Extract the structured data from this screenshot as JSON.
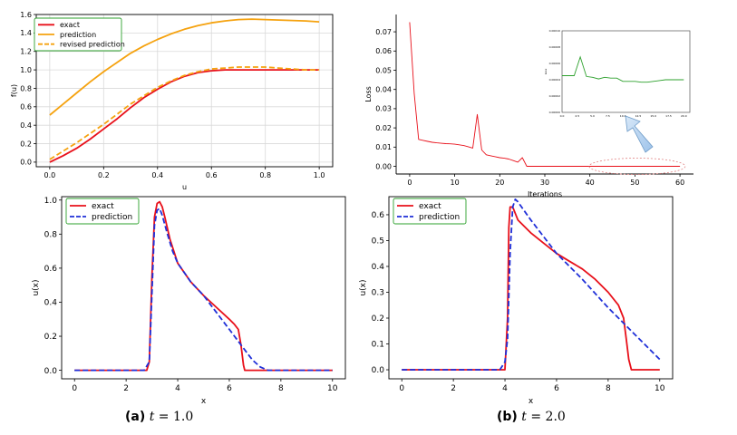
{
  "captions": {
    "a": {
      "label": "(a)",
      "var": "t",
      "eq": "= 1.0"
    },
    "b": {
      "label": "(b)",
      "var": "t",
      "eq": "= 2.0"
    }
  },
  "chart_data": [
    {
      "id": "flux",
      "type": "line",
      "title": "",
      "xlabel": "u",
      "ylabel": "f(u)",
      "xlim": [
        -0.05,
        1.05
      ],
      "ylim": [
        -0.05,
        1.6
      ],
      "xticks": [
        0.0,
        0.2,
        0.4,
        0.6,
        0.8,
        1.0
      ],
      "yticks": [
        0.0,
        0.2,
        0.4,
        0.6,
        0.8,
        1.0,
        1.2,
        1.4,
        1.6
      ],
      "xtick_labels": [
        "0.0",
        "0.2",
        "0.4",
        "0.6",
        "0.8",
        "1.0"
      ],
      "ytick_labels": [
        "0.0",
        "0.2",
        "0.4",
        "0.6",
        "0.8",
        "1.0",
        "1.2",
        "1.4",
        "1.6"
      ],
      "grid": true,
      "legend_position": "top-left",
      "series": [
        {
          "name": "exact",
          "color": "#e8101a",
          "dash": "solid",
          "x": [
            0,
            0.05,
            0.1,
            0.15,
            0.2,
            0.25,
            0.3,
            0.35,
            0.4,
            0.45,
            0.5,
            0.55,
            0.6,
            0.65,
            0.7,
            0.75,
            0.8,
            0.85,
            0.9,
            0.95,
            1.0
          ],
          "y": [
            0,
            0.07,
            0.15,
            0.25,
            0.36,
            0.47,
            0.59,
            0.7,
            0.79,
            0.87,
            0.93,
            0.97,
            0.99,
            1.0,
            1.0,
            1.0,
            1.0,
            1.0,
            1.0,
            1.0,
            1.0
          ]
        },
        {
          "name": "prediction",
          "color": "#f5a20f",
          "dash": "solid",
          "x": [
            0,
            0.05,
            0.1,
            0.15,
            0.2,
            0.25,
            0.3,
            0.35,
            0.4,
            0.45,
            0.5,
            0.55,
            0.6,
            0.65,
            0.7,
            0.75,
            0.8,
            0.85,
            0.9,
            0.95,
            1.0
          ],
          "y": [
            0.51,
            0.63,
            0.75,
            0.87,
            0.98,
            1.08,
            1.18,
            1.26,
            1.33,
            1.39,
            1.44,
            1.48,
            1.51,
            1.53,
            1.545,
            1.55,
            1.545,
            1.54,
            1.535,
            1.53,
            1.52
          ]
        },
        {
          "name": "revised prediction",
          "color": "#f5a20f",
          "dash": "dashed",
          "x": [
            0,
            0.05,
            0.1,
            0.15,
            0.2,
            0.25,
            0.3,
            0.35,
            0.4,
            0.45,
            0.5,
            0.55,
            0.6,
            0.65,
            0.7,
            0.75,
            0.8,
            0.85,
            0.9,
            0.95,
            1.0
          ],
          "y": [
            0.03,
            0.12,
            0.21,
            0.31,
            0.41,
            0.52,
            0.63,
            0.72,
            0.81,
            0.88,
            0.94,
            0.98,
            1.01,
            1.02,
            1.03,
            1.03,
            1.03,
            1.02,
            1.01,
            1.0,
            1.0
          ]
        }
      ]
    },
    {
      "id": "loss",
      "type": "line",
      "title": "",
      "xlabel": "Iterations",
      "ylabel": "Loss",
      "xlim": [
        -3,
        63
      ],
      "ylim": [
        -0.004,
        0.079
      ],
      "xticks": [
        0,
        10,
        20,
        30,
        40,
        50,
        60
      ],
      "yticks": [
        0.0,
        0.01,
        0.02,
        0.03,
        0.04,
        0.05,
        0.06,
        0.07
      ],
      "xtick_labels": [
        "0",
        "10",
        "20",
        "30",
        "40",
        "50",
        "60"
      ],
      "ytick_labels": [
        "0.00",
        "0.01",
        "0.02",
        "0.03",
        "0.04",
        "0.05",
        "0.06",
        "0.07"
      ],
      "grid": false,
      "series": [
        {
          "name": "loss",
          "color": "#e8101a",
          "dash": "solid",
          "x": [
            0,
            1,
            2,
            3,
            4,
            5,
            6,
            7,
            8,
            9,
            10,
            11,
            12,
            13,
            14,
            15,
            16,
            17,
            18,
            19,
            20,
            21,
            22,
            23,
            24,
            25,
            26,
            27,
            28,
            29,
            30,
            35,
            40,
            45,
            50,
            55,
            60
          ],
          "y": [
            0.075,
            0.038,
            0.014,
            0.0135,
            0.013,
            0.0125,
            0.0122,
            0.012,
            0.0118,
            0.0117,
            0.0115,
            0.0112,
            0.0108,
            0.0102,
            0.0095,
            0.027,
            0.0085,
            0.006,
            0.0055,
            0.005,
            0.0045,
            0.0042,
            0.0038,
            0.003,
            0.0022,
            0.0045,
            0.0,
            0.0,
            0.0,
            0.0,
            0.0,
            0.0,
            0.0,
            0.0,
            0.0,
            0.0,
            0.0
          ]
        }
      ],
      "inset": {
        "xlim": [
          0,
          21
        ],
        "ylim": [
          0,
          0.0001
        ],
        "xticks": [
          0,
          2.5,
          5,
          7.5,
          10,
          12.5,
          15,
          17.5,
          20
        ],
        "xtick_labels": [
          "0.0",
          "2.5",
          "5.0",
          "7.5",
          "10.0",
          "12.5",
          "15.0",
          "17.5",
          "20.0"
        ],
        "ytick_labels": [
          "0.00000",
          "0.00002",
          "0.00004",
          "0.00006",
          "0.00008",
          "0.00010"
        ],
        "ylabel": "Loss",
        "color": "#2ca02c",
        "x": [
          0,
          1,
          2,
          3,
          4,
          5,
          6,
          7,
          8,
          9,
          10,
          11,
          12,
          13,
          14,
          15,
          16,
          17,
          18,
          19,
          20
        ],
        "y": [
          4.5e-05,
          4.5e-05,
          4.5e-05,
          6.8e-05,
          4.4e-05,
          4.3e-05,
          4.1e-05,
          4.3e-05,
          4.2e-05,
          4.2e-05,
          3.8e-05,
          3.8e-05,
          3.8e-05,
          3.7e-05,
          3.7e-05,
          3.8e-05,
          3.9e-05,
          4e-05,
          4e-05,
          4e-05,
          4e-05
        ]
      }
    },
    {
      "id": "sol_t1",
      "type": "line",
      "title": "",
      "xlabel": "x",
      "ylabel": "u(x)",
      "xlim": [
        -0.5,
        10.5
      ],
      "ylim": [
        -0.05,
        1.02
      ],
      "xticks": [
        0,
        2,
        4,
        6,
        8,
        10
      ],
      "yticks": [
        0.0,
        0.2,
        0.4,
        0.6,
        0.8,
        1.0
      ],
      "xtick_labels": [
        "0",
        "2",
        "4",
        "6",
        "8",
        "10"
      ],
      "ytick_labels": [
        "0.0",
        "0.2",
        "0.4",
        "0.6",
        "0.8",
        "1.0"
      ],
      "grid": false,
      "legend_position": "top-left",
      "series": [
        {
          "name": "exact",
          "color": "#e8101a",
          "dash": "solid",
          "x": [
            0,
            2.8,
            2.9,
            3.0,
            3.1,
            3.2,
            3.3,
            3.4,
            3.5,
            3.7,
            4.0,
            4.5,
            5.0,
            5.5,
            6.0,
            6.2,
            6.35,
            6.45,
            6.55,
            6.6,
            6.7,
            7.0,
            8.0,
            10.0
          ],
          "y": [
            0,
            0,
            0.05,
            0.55,
            0.9,
            0.98,
            0.99,
            0.96,
            0.9,
            0.77,
            0.63,
            0.52,
            0.44,
            0.37,
            0.3,
            0.27,
            0.24,
            0.15,
            0.03,
            0.0,
            0.0,
            0.0,
            0.0,
            0.0
          ]
        },
        {
          "name": "prediction",
          "color": "#1f2fd8",
          "dash": "dashed",
          "x": [
            0,
            2.7,
            2.9,
            3.0,
            3.1,
            3.2,
            3.3,
            3.4,
            3.6,
            3.8,
            4.0,
            4.5,
            5.0,
            5.5,
            6.0,
            6.3,
            6.6,
            6.9,
            7.2,
            7.5,
            8.0,
            10.0
          ],
          "y": [
            0,
            0,
            0.05,
            0.45,
            0.85,
            0.94,
            0.95,
            0.91,
            0.8,
            0.7,
            0.63,
            0.52,
            0.44,
            0.34,
            0.24,
            0.18,
            0.12,
            0.06,
            0.02,
            0.0,
            0.0,
            0.0
          ]
        }
      ]
    },
    {
      "id": "sol_t2",
      "type": "line",
      "title": "",
      "xlabel": "x",
      "ylabel": "u(x)",
      "xlim": [
        -0.5,
        10.5
      ],
      "ylim": [
        -0.035,
        0.67
      ],
      "xticks": [
        0,
        2,
        4,
        6,
        8,
        10
      ],
      "yticks": [
        0.0,
        0.1,
        0.2,
        0.3,
        0.4,
        0.5,
        0.6
      ],
      "xtick_labels": [
        "0",
        "2",
        "4",
        "6",
        "8",
        "10"
      ],
      "ytick_labels": [
        "0.0",
        "0.1",
        "0.2",
        "0.3",
        "0.4",
        "0.5",
        "0.6"
      ],
      "grid": false,
      "legend_position": "top-left",
      "series": [
        {
          "name": "exact",
          "color": "#e8101a",
          "dash": "solid",
          "x": [
            0,
            4.0,
            4.1,
            4.15,
            4.2,
            4.3,
            4.5,
            5.0,
            5.5,
            6.0,
            6.5,
            7.0,
            7.5,
            8.0,
            8.4,
            8.6,
            8.7,
            8.8,
            8.9,
            9.0,
            10.0
          ],
          "y": [
            0,
            0.0,
            0.2,
            0.55,
            0.63,
            0.63,
            0.58,
            0.53,
            0.49,
            0.45,
            0.42,
            0.39,
            0.35,
            0.3,
            0.25,
            0.2,
            0.12,
            0.04,
            0.0,
            0.0,
            0.0
          ]
        },
        {
          "name": "prediction",
          "color": "#1f2fd8",
          "dash": "dashed",
          "x": [
            0,
            3.8,
            4.0,
            4.1,
            4.2,
            4.3,
            4.4,
            4.5,
            5.0,
            6.0,
            7.0,
            8.0,
            9.0,
            10.0
          ],
          "y": [
            0,
            0.0,
            0.03,
            0.12,
            0.45,
            0.63,
            0.66,
            0.65,
            0.58,
            0.45,
            0.35,
            0.24,
            0.14,
            0.04
          ]
        }
      ]
    }
  ]
}
